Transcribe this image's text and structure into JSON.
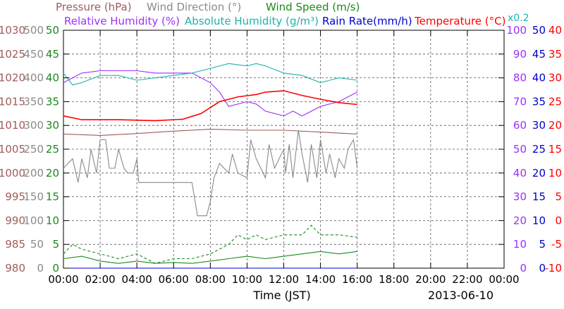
{
  "legend": {
    "row1": [
      {
        "key": "pressure",
        "label": "Pressure (hPa)",
        "color": "#a05c5c"
      },
      {
        "key": "wind_direction",
        "label": "Wind Direction (°)",
        "color": "#8a8a8a"
      },
      {
        "key": "wind_speed",
        "label": "Wind Speed (m/s)",
        "color": "#1a8a1a"
      }
    ],
    "row2": [
      {
        "key": "rh",
        "label": "Relative Humidity (%)",
        "color": "#9b30ff"
      },
      {
        "key": "ah",
        "label": "Absolute Humidity (g/m³)",
        "color": "#20b2aa"
      },
      {
        "key": "rain",
        "label": "Rain Rate(mm/h)",
        "color": "#0000cc"
      },
      {
        "key": "temp",
        "label": "Temperature (°C)",
        "color": "#ff0000"
      }
    ],
    "ah_scale_note": "x0.2"
  },
  "axis_labels": {
    "x_title": "Time (JST)",
    "date": "2013-06-10"
  },
  "chart_data": {
    "type": "line",
    "x_ticks": [
      "00:00",
      "02:00",
      "04:00",
      "06:00",
      "08:00",
      "10:00",
      "12:00",
      "14:00",
      "16:00",
      "18:00",
      "20:00",
      "22:00",
      "00:00"
    ],
    "xlim_hours": [
      0,
      24
    ],
    "grid": true,
    "y_axes": [
      {
        "key": "pressure",
        "color": "#a05c5c",
        "range": [
          980,
          1030
        ],
        "ticks": [
          "1030",
          "1025",
          "1020",
          "1015",
          "1010",
          "1005",
          "1000",
          "995",
          "990",
          "985",
          "980"
        ]
      },
      {
        "key": "wind_direction",
        "color": "#8a8a8a",
        "range": [
          0,
          500
        ],
        "ticks": [
          "500",
          "450",
          "400",
          "350",
          "300",
          "250",
          "200",
          "150",
          "100",
          "50",
          "0"
        ]
      },
      {
        "key": "wind_speed",
        "color": "#1a8a1a",
        "range": [
          0,
          50
        ],
        "ticks": [
          "50",
          "45",
          "40",
          "35",
          "30",
          "25",
          "20",
          "15",
          "10",
          "5",
          "0"
        ]
      },
      {
        "key": "rh",
        "color": "#9b30ff",
        "range": [
          0,
          100
        ],
        "ticks": [
          "100",
          "90",
          "80",
          "70",
          "60",
          "50",
          "40",
          "30",
          "20",
          "10",
          "0"
        ]
      },
      {
        "key": "rain",
        "color": "#0000cc",
        "range": [
          0,
          50
        ],
        "ticks": [
          "50",
          "45",
          "40",
          "35",
          "30",
          "25",
          "20",
          "15",
          "10",
          "5",
          "0"
        ]
      },
      {
        "key": "temp",
        "color": "#ff0000",
        "range": [
          -10,
          40
        ],
        "ticks": [
          "40",
          "35",
          "30",
          "25",
          "20",
          "15",
          "10",
          "5",
          "0",
          "-5",
          "-10"
        ]
      }
    ],
    "series": [
      {
        "name": "Pressure (hPa)",
        "key": "pressure",
        "color": "#a05c5c",
        "points": [
          [
            0,
            1008.2
          ],
          [
            2,
            1007.9
          ],
          [
            4,
            1008.3
          ],
          [
            6,
            1008.8
          ],
          [
            8,
            1009.2
          ],
          [
            10,
            1009.0
          ],
          [
            12,
            1009.0
          ],
          [
            14,
            1008.6
          ],
          [
            16,
            1008.2
          ]
        ]
      },
      {
        "name": "Relative Humidity (%)",
        "key": "rh",
        "color": "#9b30ff",
        "points": [
          [
            0,
            78
          ],
          [
            1,
            82
          ],
          [
            2,
            83
          ],
          [
            4,
            83
          ],
          [
            5,
            82
          ],
          [
            7,
            82
          ],
          [
            8,
            78
          ],
          [
            8.5,
            74
          ],
          [
            9,
            68
          ],
          [
            10,
            70
          ],
          [
            10.5,
            69
          ],
          [
            11,
            66
          ],
          [
            12,
            64
          ],
          [
            12.5,
            66
          ],
          [
            13,
            64
          ],
          [
            14,
            68
          ],
          [
            15,
            70
          ],
          [
            16,
            74
          ]
        ]
      },
      {
        "name": "Absolute Humidity (g/m³)",
        "key": "ah",
        "color": "#20b2aa",
        "points": [
          [
            0,
            82
          ],
          [
            0.5,
            77
          ],
          [
            1,
            78
          ],
          [
            2,
            81
          ],
          [
            3,
            81
          ],
          [
            4,
            79
          ],
          [
            6,
            81
          ],
          [
            7,
            82
          ],
          [
            8,
            84
          ],
          [
            9,
            86
          ],
          [
            10,
            85
          ],
          [
            10.5,
            86
          ],
          [
            11,
            85
          ],
          [
            12,
            82
          ],
          [
            13,
            81
          ],
          [
            14,
            78
          ],
          [
            14.5,
            79
          ],
          [
            15,
            80
          ],
          [
            16,
            79
          ]
        ]
      },
      {
        "name": "Temperature (°C)",
        "key": "temp",
        "color": "#ff0000",
        "points": [
          [
            0,
            22.0
          ],
          [
            1,
            21.2
          ],
          [
            3,
            21.2
          ],
          [
            5,
            21.0
          ],
          [
            6.5,
            21.3
          ],
          [
            7.5,
            22.5
          ],
          [
            8.5,
            25.0
          ],
          [
            9.5,
            26.0
          ],
          [
            10.5,
            26.5
          ],
          [
            11,
            27.0
          ],
          [
            12,
            27.3
          ],
          [
            13,
            26.3
          ],
          [
            14,
            25.5
          ],
          [
            15,
            24.8
          ],
          [
            16,
            24.4
          ]
        ]
      },
      {
        "name": "Wind Direction (°)",
        "key": "wind_direction",
        "color": "#8a8a8a",
        "points": [
          [
            0,
            210
          ],
          [
            0.5,
            230
          ],
          [
            0.8,
            180
          ],
          [
            1,
            230
          ],
          [
            1.3,
            190
          ],
          [
            1.5,
            250
          ],
          [
            1.8,
            200
          ],
          [
            2,
            270
          ],
          [
            2.3,
            270
          ],
          [
            2.5,
            210
          ],
          [
            2.8,
            210
          ],
          [
            3,
            250
          ],
          [
            3.3,
            210
          ],
          [
            3.5,
            200
          ],
          [
            3.8,
            200
          ],
          [
            4,
            230
          ],
          [
            4.1,
            180
          ],
          [
            5,
            180
          ],
          [
            6,
            180
          ],
          [
            7,
            180
          ],
          [
            7.3,
            110
          ],
          [
            7.8,
            110
          ],
          [
            8,
            140
          ],
          [
            8.2,
            190
          ],
          [
            8.5,
            220
          ],
          [
            9,
            200
          ],
          [
            9.2,
            240
          ],
          [
            9.5,
            200
          ],
          [
            10,
            190
          ],
          [
            10.2,
            270
          ],
          [
            10.5,
            230
          ],
          [
            11,
            190
          ],
          [
            11.2,
            260
          ],
          [
            11.5,
            210
          ],
          [
            12,
            250
          ],
          [
            12.1,
            200
          ],
          [
            12.3,
            260
          ],
          [
            12.5,
            190
          ],
          [
            12.8,
            290
          ],
          [
            13,
            240
          ],
          [
            13.3,
            180
          ],
          [
            13.5,
            260
          ],
          [
            13.8,
            190
          ],
          [
            14,
            270
          ],
          [
            14.3,
            200
          ],
          [
            14.5,
            240
          ],
          [
            14.8,
            190
          ],
          [
            15,
            230
          ],
          [
            15.3,
            210
          ],
          [
            15.5,
            250
          ],
          [
            15.8,
            270
          ],
          [
            16,
            210
          ]
        ]
      },
      {
        "name": "Wind Speed (m/s)",
        "key": "wind_speed",
        "color": "#1a8a1a",
        "points": [
          [
            0,
            2.0
          ],
          [
            1,
            2.5
          ],
          [
            2,
            1.5
          ],
          [
            3,
            1.0
          ],
          [
            4,
            1.5
          ],
          [
            5,
            1.0
          ],
          [
            6,
            1.2
          ],
          [
            7,
            1.0
          ],
          [
            8,
            1.5
          ],
          [
            9,
            2.0
          ],
          [
            10,
            2.5
          ],
          [
            11,
            2.0
          ],
          [
            12,
            2.5
          ],
          [
            13,
            3.0
          ],
          [
            14,
            3.5
          ],
          [
            15,
            3.0
          ],
          [
            16,
            3.5
          ]
        ]
      },
      {
        "name": "Wind Speed gust (m/s)",
        "key": "wind_speed",
        "color": "#1a8a1a",
        "dashed": true,
        "points": [
          [
            0,
            3
          ],
          [
            0.5,
            5
          ],
          [
            1,
            4
          ],
          [
            2,
            3
          ],
          [
            3,
            2
          ],
          [
            4,
            3
          ],
          [
            5,
            1
          ],
          [
            6,
            2
          ],
          [
            7,
            2
          ],
          [
            8,
            3
          ],
          [
            9,
            5
          ],
          [
            9.5,
            7
          ],
          [
            10,
            6
          ],
          [
            10.5,
            7
          ],
          [
            11,
            6
          ],
          [
            12,
            7
          ],
          [
            13,
            7
          ],
          [
            13.5,
            9
          ],
          [
            14,
            7
          ],
          [
            15,
            7
          ],
          [
            16,
            6.5
          ]
        ]
      },
      {
        "name": "Rain Rate(mm/h)",
        "key": "rain",
        "color": "#0000cc",
        "points": [
          [
            0,
            0
          ],
          [
            16,
            0
          ]
        ]
      }
    ]
  }
}
